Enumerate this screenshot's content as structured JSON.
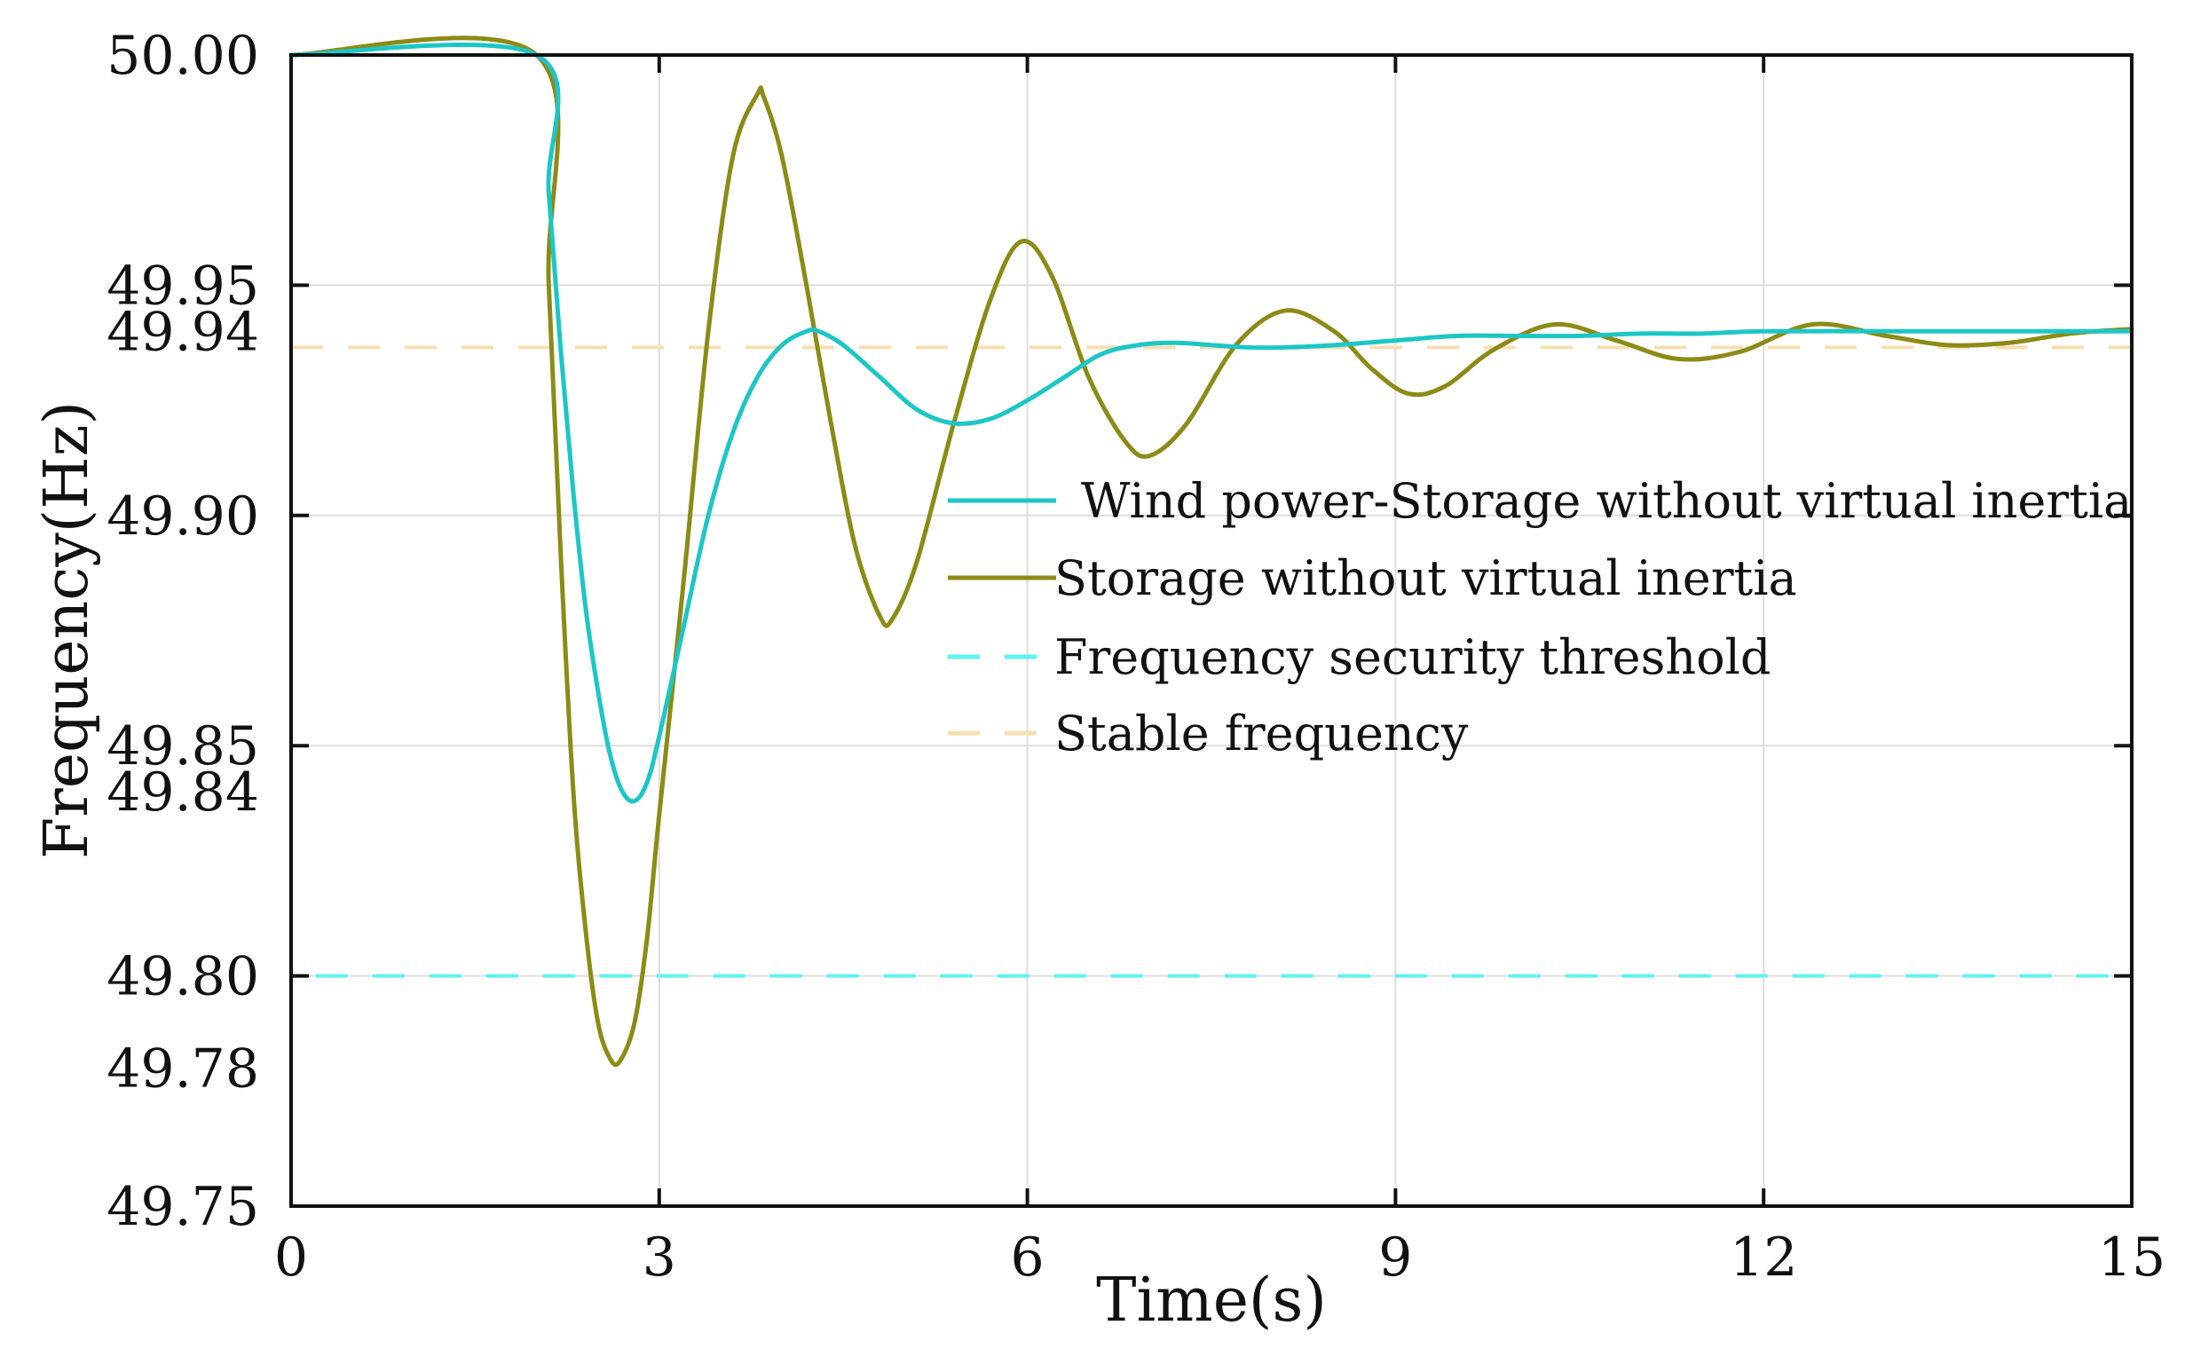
{
  "chart_data": {
    "type": "line",
    "title": "",
    "xlabel": "Time(s)",
    "ylabel": "Frequency(Hz)",
    "xlim": [
      0,
      15
    ],
    "ylim": [
      49.75,
      50.0
    ],
    "grid": true,
    "legend_position": "right-center",
    "x_ticks": [
      0,
      3,
      6,
      9,
      12,
      15
    ],
    "x_tick_labels": [
      "0",
      "3",
      "6",
      "9",
      "12",
      "15"
    ],
    "y_ticks": [
      49.75,
      49.78,
      49.8,
      49.84,
      49.85,
      49.9,
      49.94,
      49.95,
      50.0
    ],
    "y_tick_labels": [
      "49.75",
      "49.78",
      "49.80",
      "49.84",
      "49.85",
      "49.90",
      "49.94",
      "49.95",
      "50.00"
    ],
    "y_gridlines": [
      49.8,
      49.85,
      49.9,
      49.95
    ],
    "x_gridlines": [
      3,
      6,
      9,
      12
    ],
    "series": [
      {
        "name": "Wind power-Storage without virtual inertia",
        "color": "#1dc6c6",
        "style": "solid",
        "x": [
          0,
          2.0,
          2.1,
          2.2,
          2.3,
          2.4,
          2.5,
          2.6,
          2.7,
          2.8,
          2.9,
          3.0,
          3.2,
          3.4,
          3.6,
          3.8,
          4.0,
          4.2,
          4.3,
          4.5,
          4.8,
          5.1,
          5.4,
          5.7,
          6.0,
          6.3,
          6.6,
          6.9,
          7.2,
          7.5,
          7.8,
          8.1,
          8.5,
          9.0,
          9.5,
          10.0,
          10.5,
          11.0,
          11.5,
          12.0,
          13.0,
          14.0,
          15.0
        ],
        "values": [
          50.0,
          50.0,
          49.97,
          49.935,
          49.905,
          49.88,
          49.862,
          49.848,
          49.84,
          49.838,
          49.842,
          49.852,
          49.876,
          49.9,
          49.918,
          49.93,
          49.937,
          49.94,
          49.94,
          49.937,
          49.93,
          49.923,
          49.92,
          49.921,
          49.925,
          49.93,
          49.935,
          49.937,
          49.9375,
          49.937,
          49.9365,
          49.9365,
          49.937,
          49.938,
          49.939,
          49.939,
          49.939,
          49.9395,
          49.9395,
          49.94,
          49.94,
          49.94,
          49.94
        ]
      },
      {
        "name": "Storage without virtual inertia",
        "color": "#8b8b16",
        "style": "solid",
        "x": [
          0,
          2.0,
          2.1,
          2.2,
          2.3,
          2.4,
          2.5,
          2.6,
          2.68,
          2.8,
          2.9,
          3.0,
          3.2,
          3.4,
          3.6,
          3.8,
          3.85,
          4.0,
          4.2,
          4.4,
          4.6,
          4.8,
          4.9,
          5.1,
          5.4,
          5.7,
          5.95,
          6.2,
          6.5,
          6.8,
          7.0,
          7.3,
          7.7,
          8.1,
          8.5,
          8.8,
          9.1,
          9.4,
          9.8,
          10.3,
          10.8,
          11.3,
          11.8,
          12.4,
          13.0,
          13.5,
          14.0,
          14.5,
          15.0
        ],
        "values": [
          50.0,
          50.0,
          49.95,
          49.89,
          49.84,
          49.81,
          49.79,
          49.782,
          49.7815,
          49.79,
          49.808,
          49.835,
          49.886,
          49.94,
          49.978,
          49.9915,
          49.991,
          49.978,
          49.95,
          49.92,
          49.893,
          49.878,
          49.8775,
          49.89,
          49.92,
          49.947,
          49.9595,
          49.952,
          49.93,
          49.916,
          49.913,
          49.92,
          49.937,
          49.9445,
          49.94,
          49.932,
          49.9265,
          49.928,
          49.936,
          49.9415,
          49.938,
          49.934,
          49.9355,
          49.9415,
          49.939,
          49.937,
          49.9375,
          49.9395,
          49.9405
        ]
      },
      {
        "name": "Frequency security threshold",
        "color": "#5ff2f2",
        "style": "dashed",
        "x": [
          0.2,
          15
        ],
        "values": [
          49.8,
          49.8
        ]
      },
      {
        "name": "Stable frequency",
        "color": "#f8deb0",
        "style": "dashed",
        "x": [
          0,
          15
        ],
        "values": [
          49.9365,
          49.9365
        ]
      }
    ]
  }
}
